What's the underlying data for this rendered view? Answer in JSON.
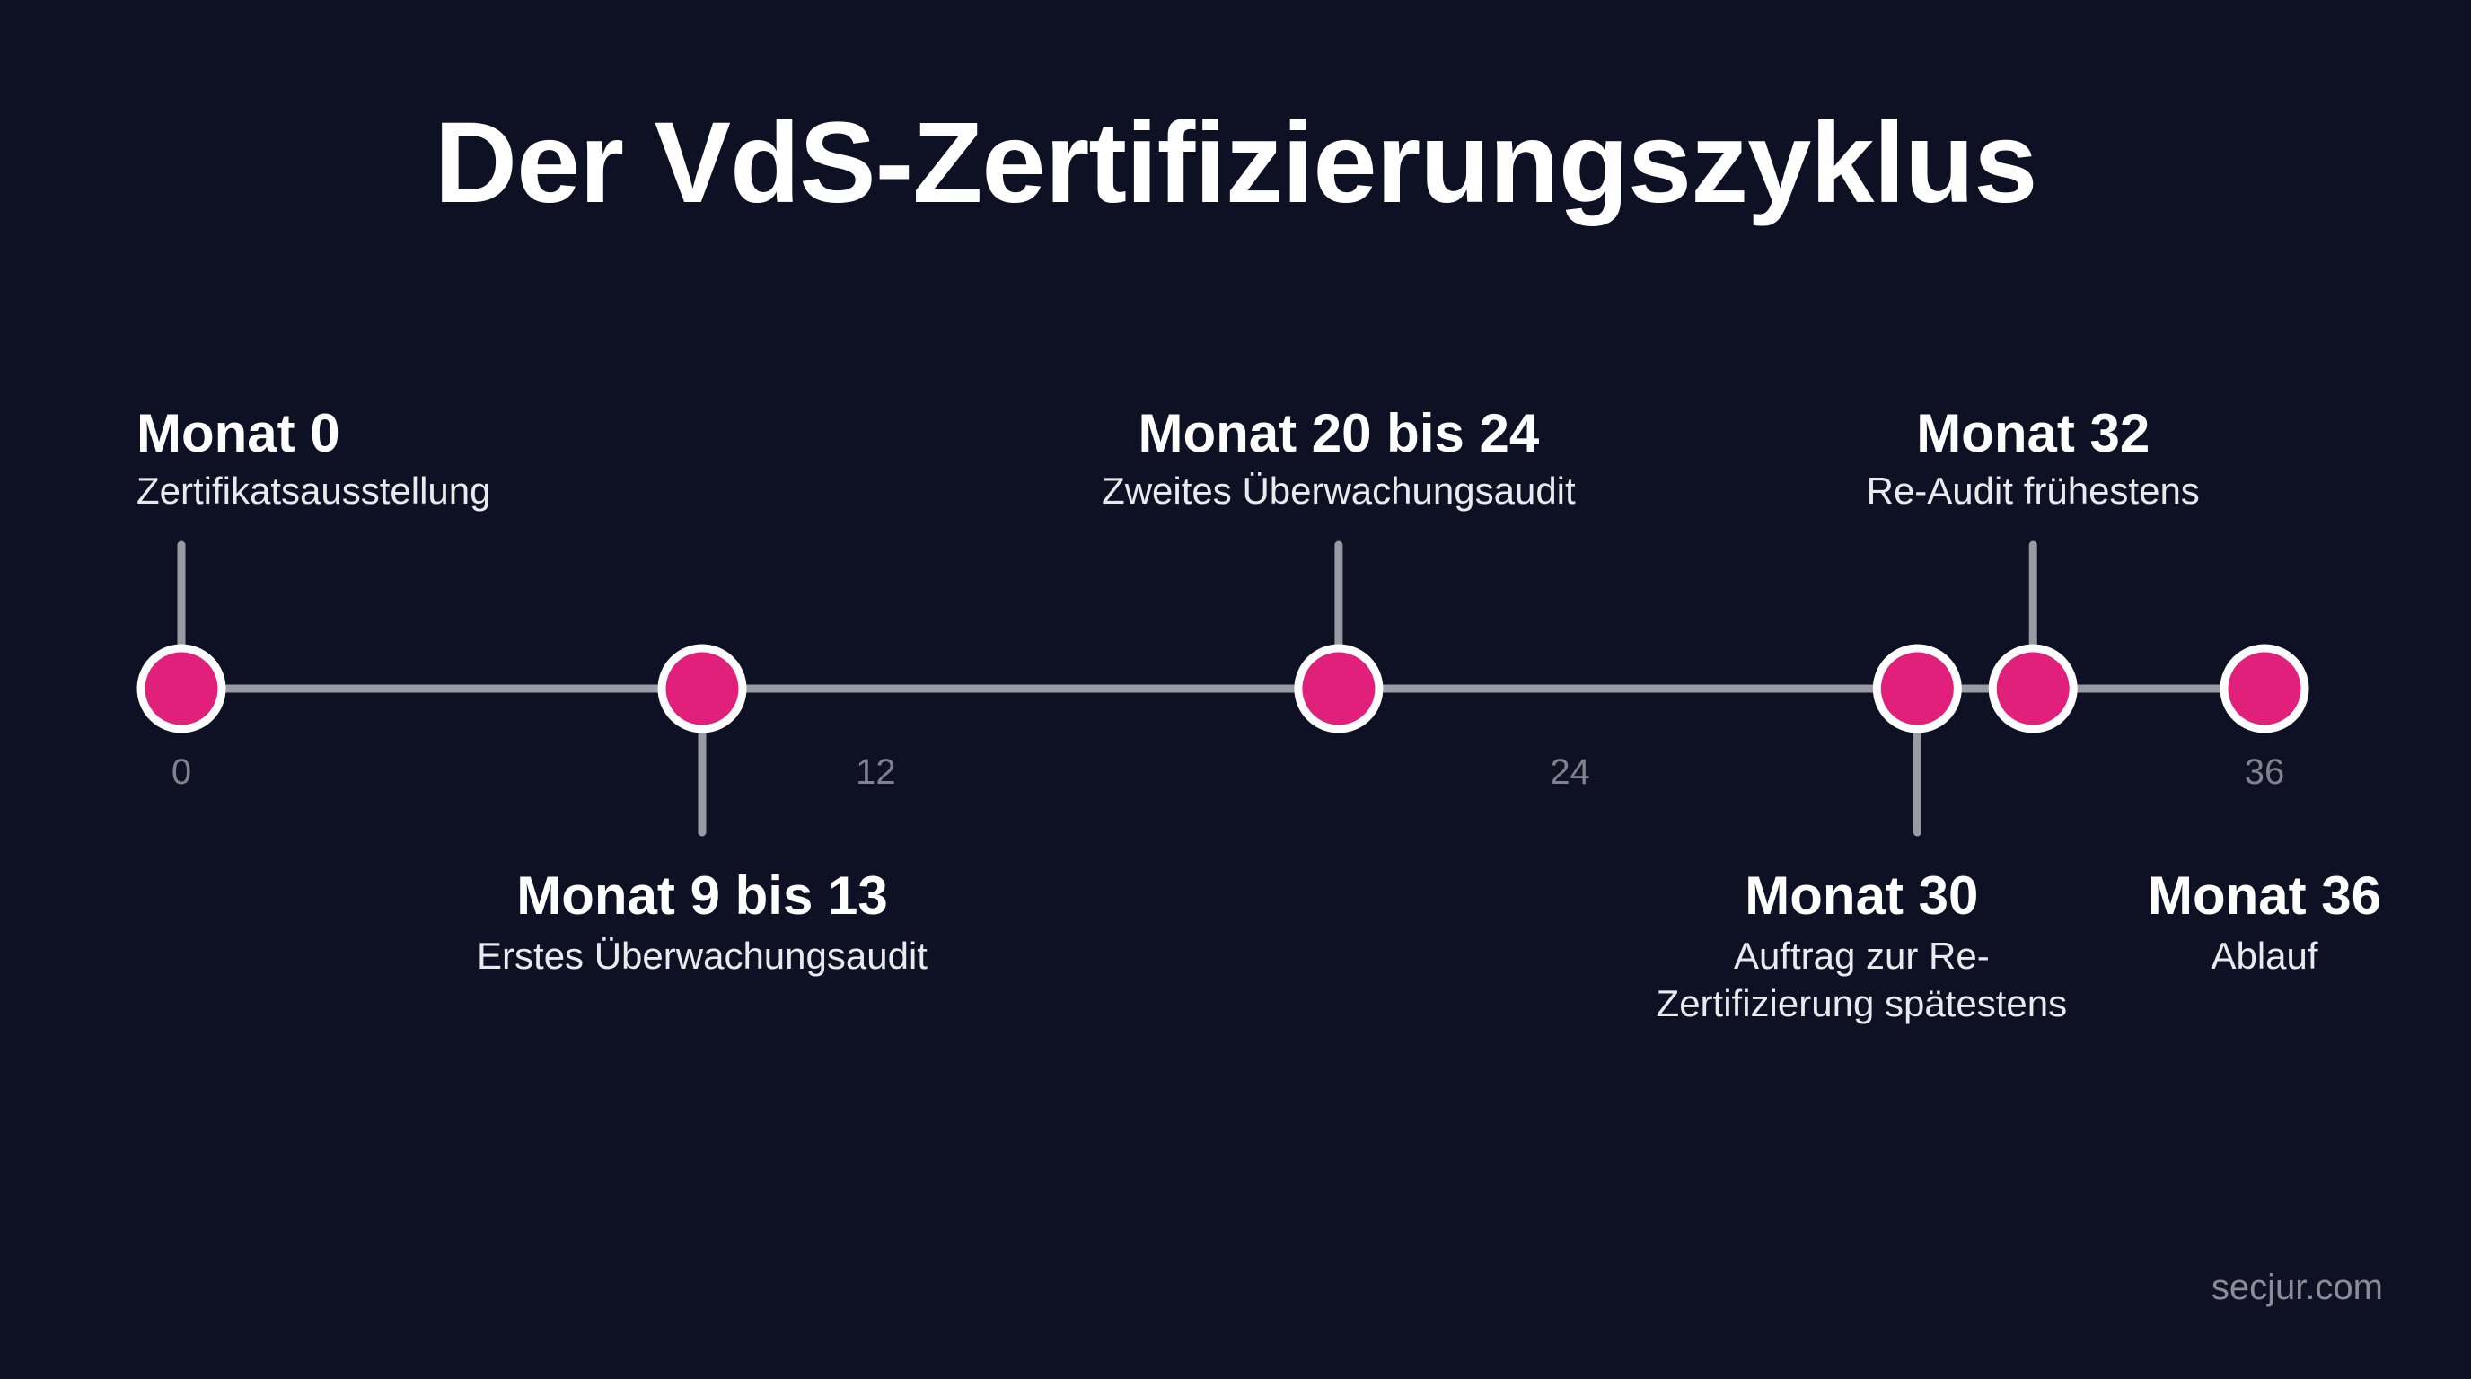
{
  "title": "Der VdS-Zertifizierungszyklus",
  "axis": {
    "min": 0,
    "max": 36,
    "ticks": [
      "0",
      "12",
      "24",
      "36"
    ]
  },
  "events": [
    {
      "month": 0,
      "title": "Monat 0",
      "desc": [
        "Zertifikatsausstellung"
      ],
      "side": "top"
    },
    {
      "month": 9,
      "title": "Monat 9 bis 13",
      "desc": [
        "Erstes Überwachungsaudit"
      ],
      "side": "bottom"
    },
    {
      "month": 20,
      "title": "Monat 20 bis 24",
      "desc": [
        "Zweites Überwachungsaudit"
      ],
      "side": "top"
    },
    {
      "month": 30,
      "title": "Monat 30",
      "desc": [
        "Auftrag zur Re-",
        "Zertifizierung spätestens"
      ],
      "side": "bottom"
    },
    {
      "month": 32,
      "title": "Monat 32",
      "desc": [
        "Re-Audit frühestens"
      ],
      "side": "top"
    },
    {
      "month": 36,
      "title": "Monat 36",
      "desc": [
        "Ablauf"
      ],
      "side": "bottom"
    }
  ],
  "colors": {
    "background": "#0e1023",
    "node": "#e0207a",
    "node_ring": "#ffffff",
    "line": "#9a9aa3"
  },
  "watermark": "secjur.com"
}
